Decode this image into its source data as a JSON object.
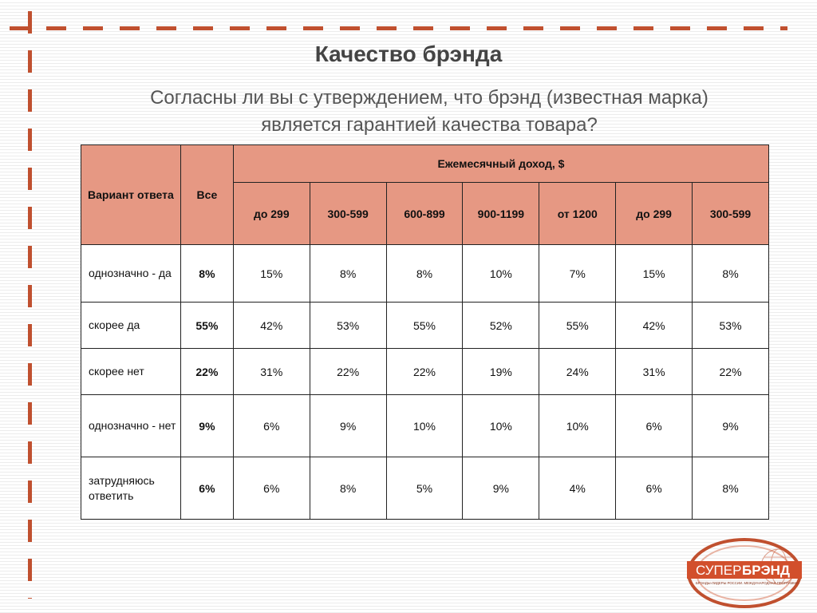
{
  "title": "Качество брэнда",
  "question": {
    "line1": "Согласны ли вы с утверждением, что брэнд (известная марка)",
    "line2": "является гарантией качества товара?"
  },
  "table": {
    "header_variant": "Вариант ответа",
    "header_all": "Все",
    "header_income": "Ежемесячный доход, $",
    "income_columns": [
      "до 299",
      "300-599",
      "600-899",
      "900-1199",
      "от 1200",
      "до 299",
      "300-599"
    ],
    "rows": [
      {
        "label": "однозначно - да",
        "all": "8%",
        "values": [
          "15%",
          "8%",
          "8%",
          "10%",
          "7%",
          "15%",
          "8%"
        ]
      },
      {
        "label": "скорее да",
        "all": "55%",
        "values": [
          "42%",
          "53%",
          "55%",
          "52%",
          "55%",
          "42%",
          "53%"
        ]
      },
      {
        "label": "скорее нет",
        "all": "22%",
        "values": [
          "31%",
          "22%",
          "22%",
          "19%",
          "24%",
          "31%",
          "22%"
        ]
      },
      {
        "label": "однозначно - нет",
        "all": "9%",
        "values": [
          "6%",
          "9%",
          "10%",
          "10%",
          "10%",
          "6%",
          "9%"
        ]
      },
      {
        "label": "затрудняюсь ответить",
        "all": "6%",
        "values": [
          "6%",
          "8%",
          "5%",
          "9%",
          "4%",
          "6%",
          "8%"
        ]
      }
    ]
  },
  "logo": {
    "text_left": "СУПЕР",
    "text_right": "БРЭНД",
    "tagline": "БРЭНДЫ-ЛИДЕРЫ РОССИИ. МЕЖДУНАРОДНАЯ ПРОГРАММА"
  },
  "colors": {
    "accent": "#c0502f",
    "header_fill": "#e69883",
    "logo_box": "#d24f2c"
  }
}
